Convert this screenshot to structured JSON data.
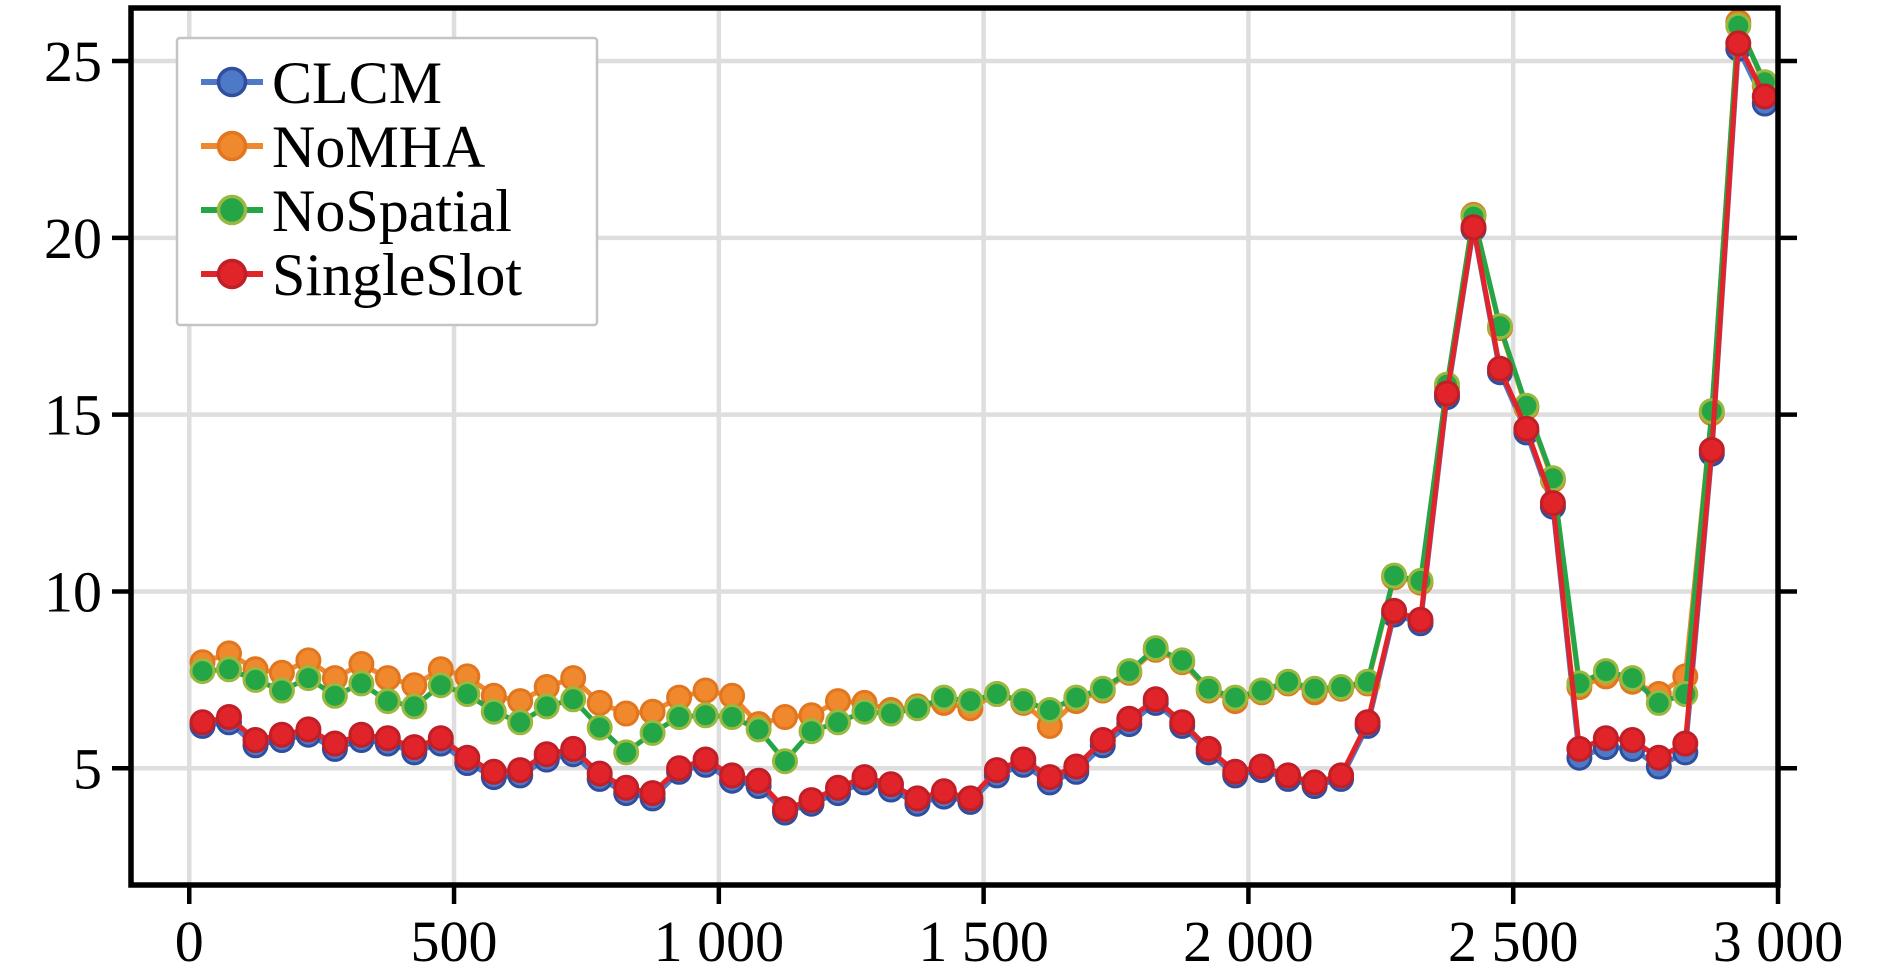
{
  "chart_data": {
    "type": "line",
    "title": "",
    "xlabel": "",
    "ylabel": "",
    "xlim": [
      -110,
      3000
    ],
    "ylim": [
      1.7,
      26.5
    ],
    "grid": true,
    "legend_position": "top-left",
    "xticks": {
      "values": [
        0,
        500,
        1000,
        1500,
        2000,
        2500,
        3000
      ],
      "labels": [
        "0",
        "500",
        "1 000",
        "1 500",
        "2 000",
        "2 500",
        "3 000"
      ]
    },
    "yticks": {
      "values": [
        5,
        10,
        15,
        20,
        25
      ],
      "labels": [
        "5",
        "10",
        "15",
        "20",
        "25"
      ]
    },
    "x": [
      25,
      75,
      125,
      175,
      225,
      275,
      325,
      375,
      425,
      475,
      525,
      575,
      625,
      675,
      725,
      775,
      825,
      875,
      925,
      975,
      1025,
      1075,
      1125,
      1175,
      1225,
      1275,
      1325,
      1375,
      1425,
      1475,
      1525,
      1575,
      1625,
      1675,
      1725,
      1775,
      1825,
      1875,
      1925,
      1975,
      2025,
      2075,
      2125,
      2175,
      2225,
      2275,
      2325,
      2375,
      2425,
      2475,
      2525,
      2575,
      2625,
      2675,
      2725,
      2775,
      2825,
      2875,
      2925,
      2975
    ],
    "series": [
      {
        "name": "CLCM",
        "line_color": "#4d79c7",
        "marker_fill": "#4d79c7",
        "marker_edge": "#2f4f9e",
        "values": [
          6.2,
          6.3,
          5.65,
          5.8,
          5.95,
          5.55,
          5.8,
          5.7,
          5.45,
          5.7,
          5.15,
          4.75,
          4.8,
          5.25,
          5.4,
          4.7,
          4.3,
          4.15,
          4.9,
          5.1,
          4.65,
          4.5,
          3.75,
          4.0,
          4.3,
          4.6,
          4.4,
          4.0,
          4.2,
          4.05,
          4.8,
          5.1,
          4.6,
          4.9,
          5.65,
          6.25,
          6.85,
          6.2,
          5.45,
          4.8,
          4.95,
          4.7,
          4.5,
          4.7,
          6.2,
          9.35,
          9.1,
          15.5,
          20.25,
          16.2,
          14.5,
          12.4,
          5.3,
          5.6,
          5.55,
          5.05,
          5.45,
          13.9,
          25.35,
          23.8
        ]
      },
      {
        "name": "NoMHA",
        "line_color": "#f0882e",
        "marker_fill": "#f0882e",
        "marker_edge": "#e2761f",
        "values": [
          8.0,
          8.25,
          7.8,
          7.7,
          8.05,
          7.55,
          7.95,
          7.55,
          7.35,
          7.8,
          7.6,
          7.05,
          6.9,
          7.3,
          7.55,
          6.85,
          6.55,
          6.6,
          7.0,
          7.2,
          7.05,
          6.25,
          6.45,
          6.5,
          6.9,
          6.85,
          6.65,
          6.75,
          6.85,
          6.7,
          7.1,
          6.85,
          6.2,
          6.9,
          7.2,
          7.7,
          8.35,
          8.0,
          7.2,
          6.9,
          7.15,
          7.4,
          7.15,
          7.25,
          7.4,
          10.4,
          10.25,
          15.8,
          20.65,
          17.45,
          15.2,
          13.15,
          7.3,
          7.6,
          7.45,
          7.1,
          7.6,
          15.05,
          26.1,
          24.3
        ]
      },
      {
        "name": "NoSpatial",
        "line_color": "#24a647",
        "marker_fill": "#24a647",
        "marker_edge": "#9ab83f",
        "values": [
          7.75,
          7.8,
          7.5,
          7.2,
          7.55,
          7.05,
          7.4,
          6.9,
          6.75,
          7.35,
          7.1,
          6.6,
          6.3,
          6.75,
          6.95,
          6.15,
          5.45,
          6.0,
          6.45,
          6.5,
          6.45,
          6.1,
          5.2,
          6.05,
          6.3,
          6.6,
          6.55,
          6.7,
          7.0,
          6.9,
          7.1,
          6.9,
          6.65,
          7.0,
          7.25,
          7.75,
          8.4,
          8.05,
          7.25,
          7.0,
          7.2,
          7.45,
          7.25,
          7.3,
          7.45,
          10.45,
          10.3,
          15.85,
          20.6,
          17.5,
          15.25,
          13.2,
          7.4,
          7.75,
          7.55,
          6.85,
          7.1,
          15.1,
          26.0,
          24.4
        ]
      },
      {
        "name": "SingleSlot",
        "line_color": "#e0242a",
        "marker_fill": "#e0242a",
        "marker_edge": "#bf1f27",
        "values": [
          6.3,
          6.45,
          5.8,
          5.95,
          6.1,
          5.7,
          5.95,
          5.85,
          5.6,
          5.85,
          5.3,
          4.9,
          4.95,
          5.4,
          5.55,
          4.85,
          4.45,
          4.3,
          5.0,
          5.25,
          4.8,
          4.65,
          3.85,
          4.1,
          4.45,
          4.75,
          4.55,
          4.15,
          4.35,
          4.15,
          4.95,
          5.25,
          4.75,
          5.05,
          5.8,
          6.4,
          6.95,
          6.3,
          5.55,
          4.9,
          5.05,
          4.8,
          4.6,
          4.8,
          6.3,
          9.45,
          9.2,
          15.6,
          20.3,
          16.3,
          14.6,
          12.5,
          5.55,
          5.85,
          5.8,
          5.3,
          5.7,
          14.0,
          25.5,
          24.0
        ]
      }
    ]
  },
  "style": {
    "background": "#ffffff",
    "grid_color": "#dedede",
    "spine_color": "#000000",
    "tick_color": "#000000",
    "legend_border": "#c4c4c4",
    "legend_background": "#ffffff"
  }
}
